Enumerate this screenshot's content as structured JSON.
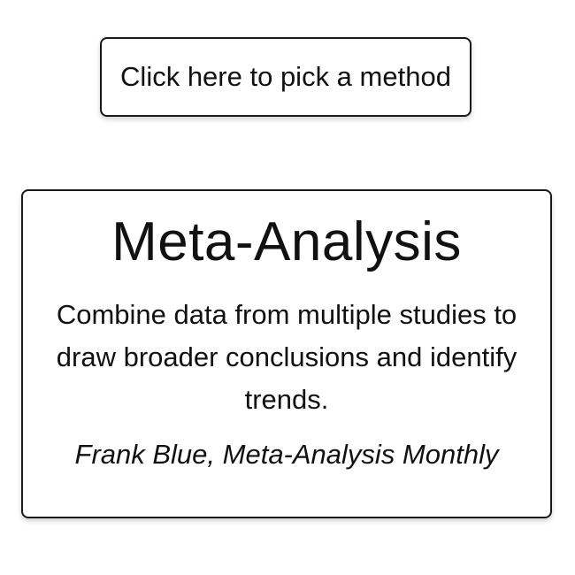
{
  "method_picker": {
    "button_label": "Click here to pick a method"
  },
  "method_card": {
    "title": "Meta-Analysis",
    "description": "Combine data from multiple studies to draw broader conclusions and identify trends.",
    "attribution": "Frank Blue, Meta-Analysis Monthly"
  }
}
